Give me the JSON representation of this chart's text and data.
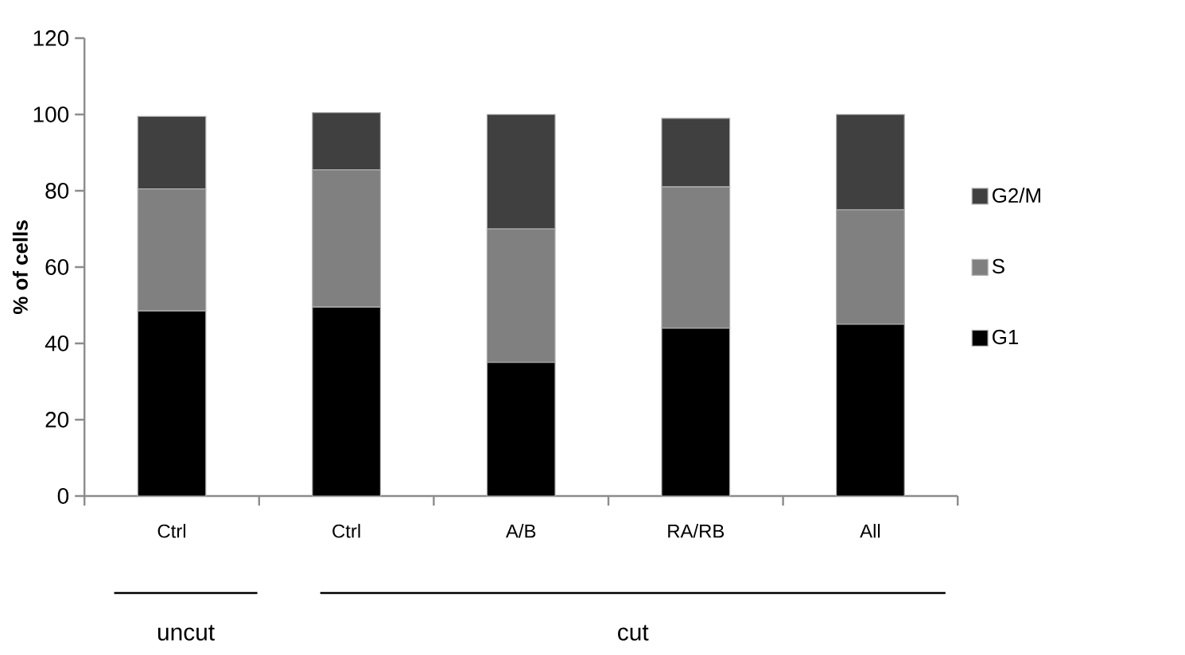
{
  "chart_data": {
    "type": "bar",
    "stacked": true,
    "ylabel": "% of cells",
    "categories": [
      "Ctrl",
      "Ctrl",
      "A/B",
      "RA/RB",
      "All"
    ],
    "series": [
      {
        "name": "G1",
        "color": "#000000",
        "values": [
          48.5,
          49.5,
          35,
          44,
          45
        ]
      },
      {
        "name": "S",
        "color": "#808080",
        "values": [
          32,
          36,
          35,
          37,
          30
        ]
      },
      {
        "name": "G2/M",
        "color": "#404040",
        "values": [
          19,
          15,
          30,
          18,
          25
        ]
      }
    ],
    "ylim": [
      0,
      120
    ],
    "yticks": [
      0,
      20,
      40,
      60,
      80,
      100,
      120
    ],
    "grid": false,
    "legend": "right",
    "annotations": [
      "uncut",
      "cut"
    ]
  }
}
